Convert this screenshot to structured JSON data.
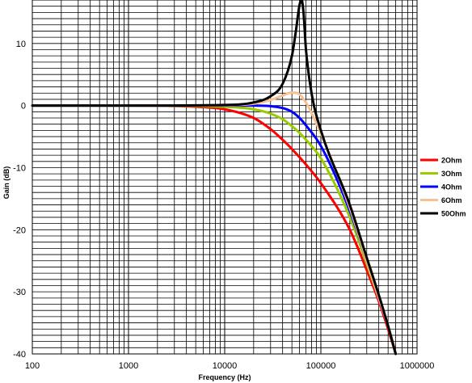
{
  "chart_data": {
    "type": "line",
    "title": "",
    "xlabel": "Frequency (Hz)",
    "ylabel": "Gain (dB)",
    "x_scale": "log",
    "xlim": [
      100,
      1000000
    ],
    "ylim": [
      -40,
      17
    ],
    "x_ticks": [
      100,
      1000,
      10000,
      100000,
      1000000
    ],
    "x_tick_labels": [
      "100",
      "1000",
      "10000",
      "100000",
      "1000000"
    ],
    "y_ticks": [
      10,
      0,
      -10,
      -20,
      -30,
      -40
    ],
    "y_tick_labels": [
      "10",
      "0",
      "-10",
      "-20",
      "-30",
      "-40"
    ],
    "grid": true,
    "legend_position": "right",
    "series": [
      {
        "name": "2Ohm",
        "color": "#ff0000",
        "x": [
          100,
          1000,
          5000,
          10000,
          20000,
          30000,
          40000,
          50000,
          70000,
          100000,
          200000,
          300000,
          400000,
          500000,
          600000
        ],
        "y": [
          0,
          0,
          -0.2,
          -0.6,
          -2.0,
          -3.8,
          -5.5,
          -7.0,
          -9.5,
          -12.5,
          -20.0,
          -26.5,
          -31.5,
          -36.0,
          -40.0
        ]
      },
      {
        "name": "3Ohm",
        "color": "#99cc00",
        "x": [
          100,
          1000,
          10000,
          20000,
          30000,
          40000,
          50000,
          60000,
          70000,
          100000,
          200000,
          300000,
          400000,
          500000,
          600000
        ],
        "y": [
          0,
          0,
          -0.2,
          -0.6,
          -1.3,
          -2.2,
          -3.3,
          -4.4,
          -5.5,
          -8.5,
          -18.0,
          -25.5,
          -31.0,
          -35.5,
          -40.0
        ]
      },
      {
        "name": "4Ohm",
        "color": "#0000ff",
        "x": [
          100,
          1000,
          10000,
          20000,
          30000,
          40000,
          50000,
          60000,
          70000,
          100000,
          200000,
          300000,
          400000,
          500000,
          600000
        ],
        "y": [
          0,
          0,
          0,
          0,
          -0.1,
          -0.4,
          -1.0,
          -2.0,
          -3.2,
          -6.5,
          -17.0,
          -25.0,
          -31.0,
          -35.5,
          -40.0
        ]
      },
      {
        "name": "6Ohm",
        "color": "#fac090",
        "x": [
          100,
          1000,
          10000,
          20000,
          30000,
          40000,
          50000,
          60000,
          70000,
          80000,
          100000,
          200000,
          300000,
          400000,
          500000,
          600000
        ],
        "y": [
          0,
          0,
          0.05,
          0.3,
          0.9,
          1.6,
          2.1,
          1.8,
          0.5,
          -1.2,
          -4.5,
          -16.5,
          -25.0,
          -31.0,
          -35.5,
          -40.0
        ]
      },
      {
        "name": "50Ohm",
        "color": "#000000",
        "x": [
          100,
          1000,
          10000,
          20000,
          30000,
          40000,
          50000,
          55000,
          60000,
          63000,
          66000,
          70000,
          80000,
          100000,
          200000,
          300000,
          400000,
          500000,
          600000
        ],
        "y": [
          0,
          0,
          0.1,
          0.5,
          1.5,
          3.5,
          8.0,
          12.0,
          16.2,
          17.0,
          15.0,
          9.0,
          2.0,
          -4.0,
          -16.0,
          -24.5,
          -30.5,
          -35.5,
          -40.0
        ]
      }
    ]
  }
}
